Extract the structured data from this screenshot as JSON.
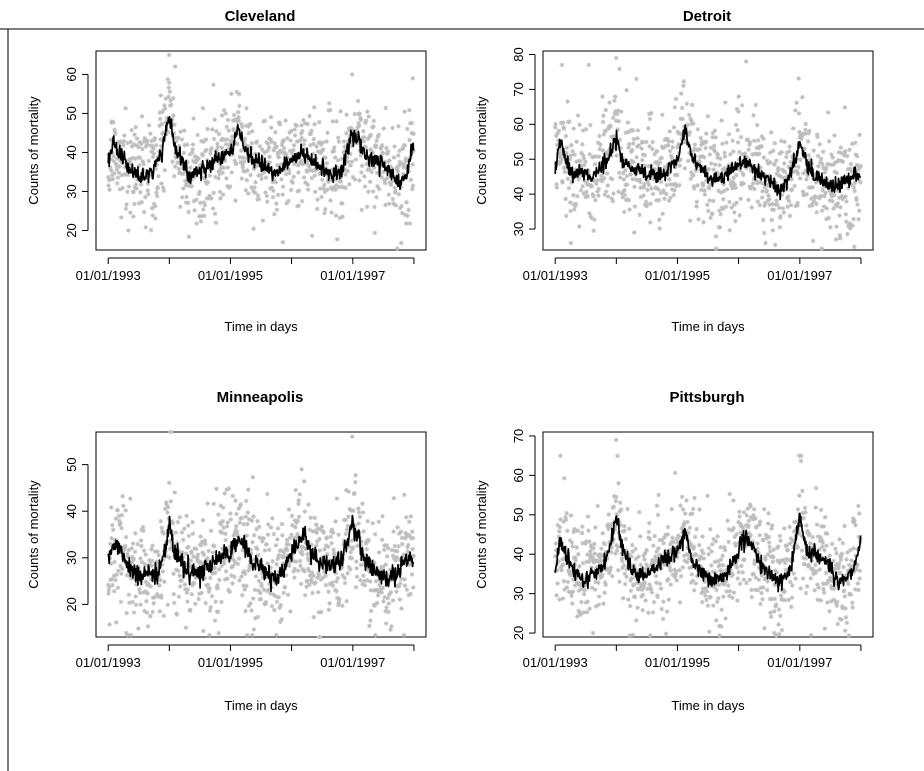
{
  "chart_data": [
    {
      "type": "scatter",
      "title": "Cleveland",
      "xlabel": "Time in days",
      "ylabel": "Counts of mortality",
      "x_range": [
        "1993-01-01",
        "1997-12-31"
      ],
      "x_ticks": [
        "01/01/1993",
        "1994-01-01",
        "01/01/1995",
        "1996-01-01",
        "01/01/1997",
        "1998-01-01"
      ],
      "x_tick_labels": [
        "01/01/1993",
        "",
        "01/01/1995",
        "",
        "01/01/1997",
        ""
      ],
      "ylim": [
        15,
        66
      ],
      "y_ticks": [
        20,
        30,
        40,
        50,
        60
      ],
      "series": [
        {
          "role": "observed-daily-counts",
          "marker": "asterisk",
          "color": "#bdbdbd",
          "approx_level": 37,
          "approx_spread": 6.5,
          "notable_points": [
            {
              "x": "1993-12-31",
              "y": 65
            },
            {
              "x": "1994-02-05",
              "y": 62
            },
            {
              "x": "1995-11-10",
              "y": 17
            },
            {
              "x": "1996-12-28",
              "y": 60
            },
            {
              "x": "1997-12-25",
              "y": 59
            }
          ]
        },
        {
          "role": "smoothed-fit",
          "color": "#000000",
          "x": [
            "1993-01-01",
            "1993-02-01",
            "1993-03-01",
            "1993-04-15",
            "1993-06-01",
            "1993-08-01",
            "1993-10-01",
            "1993-11-15",
            "1994-01-01",
            "1994-02-01",
            "1994-03-15",
            "1994-05-01",
            "1994-07-01",
            "1994-09-01",
            "1994-11-01",
            "1995-01-01",
            "1995-02-15",
            "1995-04-01",
            "1995-06-01",
            "1995-08-01",
            "1995-10-01",
            "1995-12-01",
            "1996-02-01",
            "1996-03-15",
            "1996-05-01",
            "1996-07-01",
            "1996-09-01",
            "1996-11-01",
            "1997-01-01",
            "1997-02-15",
            "1997-04-01",
            "1997-06-01",
            "1997-08-01",
            "1997-10-01",
            "1997-11-15",
            "1997-12-31"
          ],
          "y": [
            37,
            43,
            40,
            37,
            35,
            34,
            36,
            40,
            50,
            41,
            38,
            34,
            35,
            37,
            39,
            40,
            46,
            40,
            38,
            36,
            35,
            37,
            39,
            40,
            38,
            36,
            34,
            36,
            45,
            42,
            39,
            38,
            36,
            32,
            34,
            43
          ]
        }
      ]
    },
    {
      "type": "scatter",
      "title": "Detroit",
      "xlabel": "Time in days",
      "ylabel": "Counts of mortality",
      "x_range": [
        "1993-01-01",
        "1997-12-31"
      ],
      "x_ticks": [
        "01/01/1993",
        "1994-01-01",
        "01/01/1995",
        "1996-01-01",
        "01/01/1997",
        "1998-01-01"
      ],
      "x_tick_labels": [
        "01/01/1993",
        "",
        "01/01/1995",
        "",
        "01/01/1997",
        ""
      ],
      "ylim": [
        24,
        81
      ],
      "y_ticks": [
        30,
        40,
        50,
        60,
        70,
        80
      ],
      "series": [
        {
          "role": "observed-daily-counts",
          "marker": "asterisk",
          "color": "#bdbdbd",
          "approx_level": 47,
          "approx_spread": 7.5,
          "notable_points": [
            {
              "x": "1993-02-10",
              "y": 77
            },
            {
              "x": "1993-07-20",
              "y": 77
            },
            {
              "x": "1993-12-31",
              "y": 79
            },
            {
              "x": "1994-05-01",
              "y": 73
            },
            {
              "x": "1996-02-15",
              "y": 78
            },
            {
              "x": "1993-04-05",
              "y": 26
            },
            {
              "x": "1996-06-10",
              "y": 26
            }
          ]
        },
        {
          "role": "smoothed-fit",
          "color": "#000000",
          "x": [
            "1993-01-01",
            "1993-02-01",
            "1993-03-01",
            "1993-04-15",
            "1993-06-01",
            "1993-08-01",
            "1993-10-01",
            "1993-11-15",
            "1994-01-01",
            "1994-02-01",
            "1994-03-15",
            "1994-05-01",
            "1994-07-01",
            "1994-09-01",
            "1994-11-01",
            "1995-01-01",
            "1995-02-15",
            "1995-04-01",
            "1995-06-01",
            "1995-08-01",
            "1995-10-01",
            "1995-12-01",
            "1996-02-01",
            "1996-03-15",
            "1996-05-01",
            "1996-07-01",
            "1996-09-01",
            "1996-11-01",
            "1997-01-01",
            "1997-02-15",
            "1997-04-01",
            "1997-06-01",
            "1997-08-01",
            "1997-10-01",
            "1997-11-15",
            "1997-12-31"
          ],
          "y": [
            46,
            56,
            50,
            45,
            47,
            44,
            48,
            50,
            57,
            50,
            48,
            47,
            46,
            45,
            47,
            50,
            59,
            50,
            46,
            44,
            45,
            48,
            49,
            48,
            46,
            44,
            41,
            45,
            55,
            48,
            45,
            43,
            42,
            44,
            45,
            46
          ]
        }
      ]
    },
    {
      "type": "scatter",
      "title": "Minneapolis",
      "xlabel": "Time in days",
      "ylabel": "Counts of mortality",
      "x_range": [
        "1993-01-01",
        "1997-12-31"
      ],
      "x_ticks": [
        "01/01/1993",
        "1994-01-01",
        "01/01/1995",
        "1996-01-01",
        "01/01/1997",
        "1998-01-01"
      ],
      "x_tick_labels": [
        "01/01/1993",
        "",
        "01/01/1995",
        "",
        "01/01/1997",
        ""
      ],
      "ylim": [
        13,
        57
      ],
      "y_ticks": [
        20,
        30,
        40,
        50
      ],
      "series": [
        {
          "role": "observed-daily-counts",
          "marker": "asterisk",
          "color": "#bdbdbd",
          "approx_level": 29,
          "approx_spread": 6,
          "notable_points": [
            {
              "x": "1994-01-10",
              "y": 57
            },
            {
              "x": "1996-12-28",
              "y": 56
            },
            {
              "x": "1996-03-01",
              "y": 49
            },
            {
              "x": "1996-06-15",
              "y": 13
            },
            {
              "x": "1994-04-10",
              "y": 15
            }
          ]
        },
        {
          "role": "smoothed-fit",
          "color": "#000000",
          "x": [
            "1993-01-01",
            "1993-02-01",
            "1993-03-01",
            "1993-04-15",
            "1993-06-01",
            "1993-08-01",
            "1993-10-01",
            "1993-11-15",
            "1994-01-01",
            "1994-02-01",
            "1994-03-15",
            "1994-05-01",
            "1994-07-01",
            "1994-09-01",
            "1994-11-01",
            "1995-01-01",
            "1995-02-15",
            "1995-04-01",
            "1995-06-01",
            "1995-08-01",
            "1995-10-01",
            "1995-12-01",
            "1996-02-01",
            "1996-03-15",
            "1996-05-01",
            "1996-07-01",
            "1996-09-01",
            "1996-11-01",
            "1997-01-01",
            "1997-02-15",
            "1997-04-01",
            "1997-06-01",
            "1997-08-01",
            "1997-10-01",
            "1997-11-15",
            "1997-12-31"
          ],
          "y": [
            30,
            32,
            33,
            29,
            26,
            27,
            26,
            28,
            37,
            31,
            29,
            27,
            27,
            28,
            30,
            31,
            34,
            32,
            29,
            27,
            25,
            29,
            33,
            35,
            31,
            29,
            28,
            30,
            37,
            32,
            29,
            27,
            25,
            27,
            30,
            29
          ]
        }
      ]
    },
    {
      "type": "scatter",
      "title": "Pittsburgh",
      "xlabel": "Time in days",
      "ylabel": "Counts of mortality",
      "x_range": [
        "1993-01-01",
        "1997-12-31"
      ],
      "x_ticks": [
        "01/01/1993",
        "1994-01-01",
        "01/01/1995",
        "1996-01-01",
        "01/01/1997",
        "1998-01-01"
      ],
      "x_tick_labels": [
        "01/01/1993",
        "",
        "01/01/1995",
        "",
        "01/01/1997",
        ""
      ],
      "ylim": [
        19,
        71
      ],
      "y_ticks": [
        20,
        30,
        40,
        50,
        60,
        70
      ],
      "series": [
        {
          "role": "observed-daily-counts",
          "marker": "asterisk",
          "color": "#bdbdbd",
          "approx_level": 38,
          "approx_spread": 6.5,
          "notable_points": [
            {
              "x": "1993-02-01",
              "y": 65
            },
            {
              "x": "1993-12-31",
              "y": 69
            },
            {
              "x": "1996-12-28",
              "y": 65
            },
            {
              "x": "1993-08-15",
              "y": 20
            },
            {
              "x": "1996-08-01",
              "y": 20
            }
          ]
        },
        {
          "role": "smoothed-fit",
          "color": "#000000",
          "x": [
            "1993-01-01",
            "1993-02-01",
            "1993-03-01",
            "1993-04-15",
            "1993-06-01",
            "1993-08-01",
            "1993-10-01",
            "1993-11-15",
            "1994-01-01",
            "1994-02-01",
            "1994-03-15",
            "1994-05-01",
            "1994-07-01",
            "1994-09-01",
            "1994-11-01",
            "1995-01-01",
            "1995-02-15",
            "1995-04-01",
            "1995-06-01",
            "1995-08-01",
            "1995-10-01",
            "1995-12-01",
            "1996-02-01",
            "1996-03-15",
            "1996-05-01",
            "1996-07-01",
            "1996-09-01",
            "1996-11-01",
            "1997-01-01",
            "1997-02-15",
            "1997-04-01",
            "1997-06-01",
            "1997-08-01",
            "1997-10-01",
            "1997-11-15",
            "1997-12-31"
          ],
          "y": [
            36,
            44,
            41,
            37,
            33,
            35,
            36,
            40,
            50,
            42,
            38,
            35,
            35,
            37,
            39,
            41,
            46,
            38,
            35,
            33,
            34,
            38,
            44,
            43,
            38,
            35,
            33,
            35,
            49,
            40,
            41,
            38,
            34,
            33,
            36,
            43
          ]
        }
      ]
    }
  ]
}
